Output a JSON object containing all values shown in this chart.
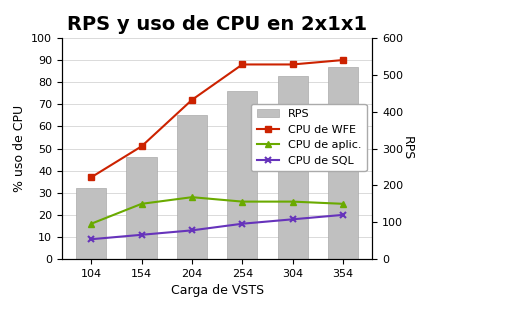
{
  "title": "RPS y uso de CPU en 2x1x1",
  "xlabel": "Carga de VSTS",
  "ylabel_left": "% uso de CPU",
  "ylabel_right": "RPS",
  "categories": [
    104,
    154,
    204,
    254,
    304,
    354
  ],
  "bar_heights_left": [
    32,
    46,
    65,
    76,
    83,
    87
  ],
  "cpu_wfe": [
    37,
    51,
    72,
    88,
    88,
    90
  ],
  "cpu_aplic": [
    16,
    25,
    28,
    26,
    26,
    25
  ],
  "cpu_sql": [
    9,
    11,
    13,
    16,
    18,
    20
  ],
  "bar_color": "#c0c0c0",
  "bar_edgecolor": "#aaaaaa",
  "wfe_color": "#cc2200",
  "aplic_color": "#6aaa00",
  "sql_color": "#6633bb",
  "ylim_left": [
    0,
    100
  ],
  "ylim_right": [
    0,
    600
  ],
  "yticks_left": [
    0,
    10,
    20,
    30,
    40,
    50,
    60,
    70,
    80,
    90,
    100
  ],
  "yticks_right": [
    0,
    100,
    200,
    300,
    400,
    500,
    600
  ],
  "title_fontsize": 14,
  "axis_label_fontsize": 9,
  "tick_fontsize": 8,
  "legend_fontsize": 8,
  "legend_labels": [
    "RPS",
    "CPU de WFE",
    "CPU de aplic.",
    "CPU de SQL"
  ]
}
